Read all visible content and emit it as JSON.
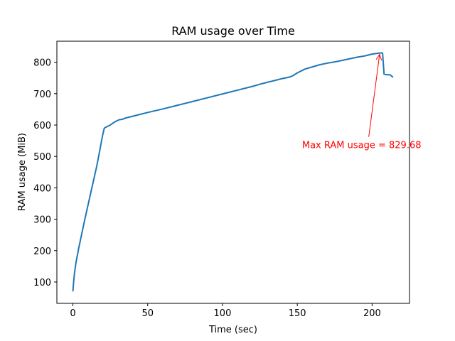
{
  "chart_data": {
    "type": "line",
    "title": "RAM usage over Time",
    "xlabel": "Time (sec)",
    "ylabel": "RAM usage (MiB)",
    "xlim": [
      -10.7,
      225
    ],
    "ylim": [
      32,
      867
    ],
    "xticks": [
      0,
      50,
      100,
      150,
      200
    ],
    "yticks": [
      100,
      200,
      300,
      400,
      500,
      600,
      700,
      800
    ],
    "grid": false,
    "series": [
      {
        "color": "#1f77b4",
        "x": [
          0,
          0.5,
          1,
          2,
          4,
          8,
          12,
          16,
          20,
          21,
          22,
          25,
          28,
          31,
          33,
          35,
          40,
          50,
          60,
          70,
          80,
          90,
          100,
          110,
          120,
          125,
          130,
          135,
          140,
          145,
          147,
          150,
          155,
          160,
          165,
          170,
          175,
          180,
          185,
          190,
          195,
          200,
          203,
          205,
          206,
          207,
          208,
          210,
          212,
          214
        ],
        "y": [
          70,
          100,
          125,
          160,
          210,
          300,
          385,
          470,
          570,
          590,
          593,
          600,
          610,
          617,
          618,
          622,
          628,
          640,
          651,
          663,
          675,
          687,
          699,
          711,
          723,
          730,
          736,
          742,
          748,
          753,
          757,
          766,
          778,
          785,
          792,
          797,
          801,
          806,
          811,
          816,
          820,
          826,
          828,
          829,
          830,
          829,
          762,
          760,
          760,
          752
        ]
      }
    ],
    "annotation": {
      "text": "Max RAM usage = 829.68",
      "color": "#ff0000",
      "point": [
        205,
        829.68
      ],
      "text_pos": [
        155,
        535
      ]
    }
  }
}
